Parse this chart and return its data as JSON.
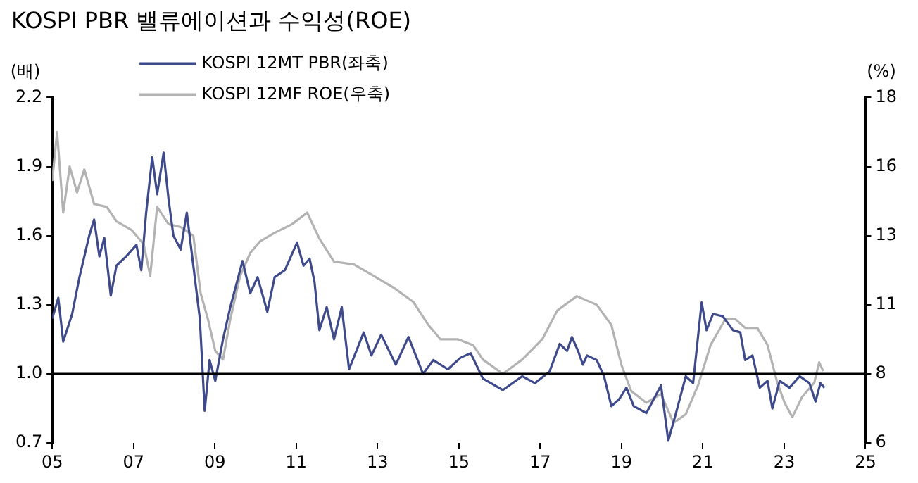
{
  "chart_data": {
    "type": "line",
    "title": "KOSPI PBR 밸류에이션과 수익성(ROE)",
    "ylabel": "(배)",
    "y2label": "(%)",
    "xlim": [
      2005,
      2025
    ],
    "xticks": [
      {
        "value": 2005,
        "label": "05"
      },
      {
        "value": 2007,
        "label": "07"
      },
      {
        "value": 2009,
        "label": "09"
      },
      {
        "value": 2011,
        "label": "11"
      },
      {
        "value": 2013,
        "label": "13"
      },
      {
        "value": 2015,
        "label": "15"
      },
      {
        "value": 2017,
        "label": "17"
      },
      {
        "value": 2019,
        "label": "19"
      },
      {
        "value": 2021,
        "label": "21"
      },
      {
        "value": 2023,
        "label": "23"
      },
      {
        "value": 2025,
        "label": "25"
      }
    ],
    "ylim": [
      0.7,
      2.2
    ],
    "yticks": [
      0.7,
      {
        "value": 1.0,
        "label": "1.0"
      },
      1.3,
      1.6,
      1.9,
      2.2
    ],
    "y2lim": [
      6,
      18
    ],
    "y2ticks": [
      6,
      {
        "value": 8.4,
        "label": "8"
      },
      {
        "value": 10.8,
        "label": "11"
      },
      {
        "value": 13.2,
        "label": "13"
      },
      {
        "value": 15.6,
        "label": "16"
      },
      18
    ],
    "ref_lines": [
      {
        "axis": "y",
        "value": 1.0,
        "label": null,
        "color": "#000000"
      }
    ],
    "grid": false,
    "legend": "top",
    "marker": "none",
    "line_style": "solid",
    "series": [
      {
        "name": "KOSPI 12MT PBR(좌축)",
        "color": "#3f4a8a",
        "axis": "y",
        "x": [
          2005.0,
          2005.15,
          2005.27,
          2005.49,
          2005.67,
          2005.91,
          2006.03,
          2006.16,
          2006.28,
          2006.44,
          2006.58,
          2006.82,
          2007.07,
          2007.19,
          2007.31,
          2007.46,
          2007.58,
          2007.74,
          2007.86,
          2007.98,
          2008.16,
          2008.31,
          2008.47,
          2008.63,
          2008.75,
          2008.87,
          2009.01,
          2009.2,
          2009.38,
          2009.68,
          2009.87,
          2010.05,
          2010.29,
          2010.47,
          2010.72,
          2011.02,
          2011.18,
          2011.33,
          2011.45,
          2011.57,
          2011.75,
          2011.93,
          2012.12,
          2012.3,
          2012.48,
          2012.66,
          2012.85,
          2013.09,
          2013.45,
          2013.76,
          2014.12,
          2014.37,
          2014.73,
          2015.04,
          2015.29,
          2015.59,
          2016.08,
          2016.56,
          2016.87,
          2017.23,
          2017.48,
          2017.66,
          2017.78,
          2017.93,
          2018.05,
          2018.15,
          2018.39,
          2018.57,
          2018.75,
          2018.94,
          2019.12,
          2019.3,
          2019.61,
          2019.97,
          2020.15,
          2020.34,
          2020.58,
          2020.76,
          2020.97,
          2021.09,
          2021.25,
          2021.49,
          2021.74,
          2021.92,
          2022.04,
          2022.22,
          2022.4,
          2022.59,
          2022.71,
          2022.89,
          2023.13,
          2023.38,
          2023.62,
          2023.77,
          2023.89,
          2023.99
        ],
        "values": [
          1.24,
          1.33,
          1.14,
          1.26,
          1.42,
          1.6,
          1.67,
          1.51,
          1.59,
          1.34,
          1.47,
          1.51,
          1.56,
          1.45,
          1.7,
          1.94,
          1.78,
          1.96,
          1.76,
          1.6,
          1.54,
          1.7,
          1.47,
          1.24,
          0.84,
          1.06,
          0.97,
          1.15,
          1.29,
          1.49,
          1.35,
          1.42,
          1.27,
          1.42,
          1.45,
          1.57,
          1.47,
          1.5,
          1.4,
          1.19,
          1.29,
          1.15,
          1.29,
          1.02,
          1.1,
          1.18,
          1.08,
          1.17,
          1.04,
          1.16,
          1.0,
          1.06,
          1.02,
          1.07,
          1.09,
          0.98,
          0.93,
          0.99,
          0.96,
          1.01,
          1.13,
          1.1,
          1.16,
          1.1,
          1.04,
          1.08,
          1.06,
          0.99,
          0.86,
          0.89,
          0.94,
          0.86,
          0.83,
          0.95,
          0.71,
          0.83,
          0.99,
          0.96,
          1.31,
          1.19,
          1.26,
          1.25,
          1.19,
          1.18,
          1.06,
          1.08,
          0.94,
          0.97,
          0.85,
          0.97,
          0.94,
          0.99,
          0.96,
          0.88,
          0.96,
          0.94
        ]
      },
      {
        "name": "KOSPI 12MF ROE(우축)",
        "color": "#b3b3b3",
        "axis": "y2",
        "x": [
          2005.0,
          2005.12,
          2005.27,
          2005.43,
          2005.61,
          2005.79,
          2006.03,
          2006.34,
          2006.58,
          2006.95,
          2007.25,
          2007.41,
          2007.58,
          2007.86,
          2008.16,
          2008.47,
          2008.65,
          2008.83,
          2009.01,
          2009.2,
          2009.38,
          2009.62,
          2009.87,
          2010.11,
          2010.47,
          2010.9,
          2011.27,
          2011.57,
          2011.93,
          2012.42,
          2012.79,
          2013.39,
          2013.88,
          2014.25,
          2014.55,
          2014.98,
          2015.35,
          2015.59,
          2016.08,
          2016.56,
          2017.05,
          2017.42,
          2017.9,
          2018.39,
          2018.75,
          2019.0,
          2019.24,
          2019.61,
          2019.97,
          2020.28,
          2020.58,
          2020.88,
          2021.19,
          2021.55,
          2021.8,
          2022.04,
          2022.34,
          2022.59,
          2022.83,
          2023.01,
          2023.2,
          2023.44,
          2023.74,
          2023.86,
          2023.96
        ],
        "values": [
          15.1,
          16.8,
          14.0,
          15.6,
          14.7,
          15.5,
          14.3,
          14.2,
          13.7,
          13.4,
          12.9,
          11.8,
          14.2,
          13.6,
          13.5,
          13.2,
          11.2,
          10.3,
          9.2,
          8.9,
          10.3,
          11.8,
          12.6,
          13.0,
          13.3,
          13.6,
          14.0,
          13.1,
          12.3,
          12.2,
          11.9,
          11.4,
          10.9,
          10.1,
          9.6,
          9.6,
          9.4,
          8.9,
          8.4,
          8.9,
          9.6,
          10.6,
          11.1,
          10.8,
          10.1,
          8.7,
          7.8,
          7.4,
          7.7,
          6.7,
          7.0,
          8.0,
          9.4,
          10.3,
          10.3,
          10.0,
          10.0,
          9.4,
          8.1,
          7.4,
          6.9,
          7.6,
          8.1,
          8.8,
          8.5
        ]
      }
    ]
  }
}
